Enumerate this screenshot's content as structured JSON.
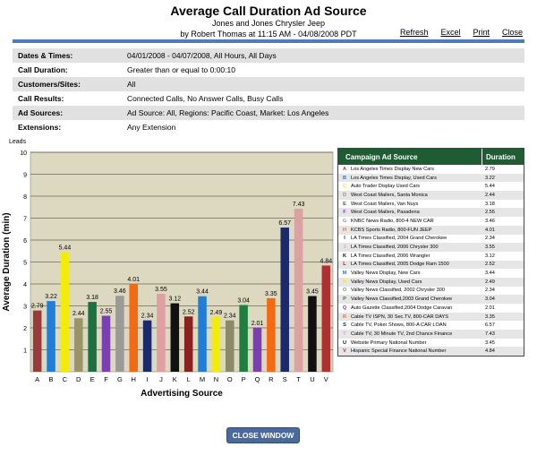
{
  "header": {
    "title": "Average Call Duration Ad Source",
    "subtitle": "Jones and Jones Chrysler Jeep",
    "byline": "by Robert Thomas at 11:15 AM - 04/08/2008  PDT",
    "links": [
      "Refresh",
      "Excel",
      "Print",
      "Close"
    ]
  },
  "criteria": [
    {
      "key": "Dates & Times:",
      "value": "04/01/2008 - 04/07/2008, All Hours, All Days"
    },
    {
      "key": "Call Duration:",
      "value": "Greater than or equal to 0:00:10"
    },
    {
      "key": "Customers/Sites:",
      "value": "All"
    },
    {
      "key": "Call Results:",
      "value": "Connected Calls, No Answer Calls, Busy Calls"
    },
    {
      "key": "Ad Sources:",
      "value": "Ad Source: All, Regions: Pacific Coast,  Market: Los Angeles"
    },
    {
      "key": "Extensions:",
      "value": "Any Extension"
    }
  ],
  "chart_data": {
    "type": "bar",
    "title": "",
    "corner_label": "Leads",
    "xlabel": "Advertising Source",
    "ylabel": "Average Duration (min)",
    "ylim": [
      0,
      10
    ],
    "yticks": [
      1,
      2,
      3,
      4,
      5,
      6,
      7,
      8,
      9,
      10
    ],
    "grid": true,
    "categories": [
      "A",
      "B",
      "C",
      "D",
      "E",
      "F",
      "G",
      "H",
      "I",
      "J",
      "K",
      "L",
      "M",
      "N",
      "O",
      "P",
      "Q",
      "R",
      "S",
      "T",
      "U",
      "V"
    ],
    "values": [
      2.79,
      3.22,
      5.44,
      2.44,
      3.18,
      2.55,
      3.46,
      4.01,
      2.34,
      3.55,
      3.12,
      2.52,
      3.44,
      2.49,
      2.34,
      3.04,
      2.01,
      3.35,
      6.57,
      7.43,
      3.45,
      4.84
    ],
    "colors": [
      "#9a3b3b",
      "#1f7ed8",
      "#f2ec0c",
      "#9a9466",
      "#1e7040",
      "#7a3fb0",
      "#9a9a9a",
      "#f46a12",
      "#1b2a6b",
      "#dfa0a4",
      "#111111",
      "#8a2020",
      "#1f7ed8",
      "#f2ec0c",
      "#8a8a66",
      "#1e8040",
      "#7a3fb0",
      "#f46a12",
      "#1b2a6b",
      "#dfa0a4",
      "#111111",
      "#b03030"
    ]
  },
  "legend": {
    "header_source": "Campaign Ad Source",
    "header_duration": "Duration",
    "rows": [
      {
        "letter": "A",
        "name": "Los Angeles  Times Display New Cars",
        "value": "2.79"
      },
      {
        "letter": "B",
        "name": "Los Angeles  Times Display, Used Cars",
        "value": "3.22"
      },
      {
        "letter": "C",
        "name": "Auto Trader Display Used Cars",
        "value": "5.44"
      },
      {
        "letter": "D",
        "name": "West Coast Mailers, Santa  Monica",
        "value": "2.44"
      },
      {
        "letter": "E",
        "name": "West Coast Mailers, Van  Nuys",
        "value": "3.18"
      },
      {
        "letter": "F",
        "name": "West Coast Mailers, Pasadena",
        "value": "2.55"
      },
      {
        "letter": "G",
        "name": "KNBC News Radio, 800-4 NEW CAR",
        "value": "3.46"
      },
      {
        "letter": "H",
        "name": "KCBS Sports  Radio, 800-FUN JEEP",
        "value": "4.01"
      },
      {
        "letter": "I",
        "name": "LA Times Classified, 2004  Grand Cherokee",
        "value": "2.34"
      },
      {
        "letter": "J",
        "name": "LA Times Classified, 2006  Chrysler 300",
        "value": "3.55"
      },
      {
        "letter": "K",
        "name": "LA Times Classified, 2006  Wrangler",
        "value": "3.12"
      },
      {
        "letter": "L",
        "name": "LA Times Classified, 2005 Dodge Ram  1500",
        "value": "2.52"
      },
      {
        "letter": "M",
        "name": "Valley News Display, New Cars",
        "value": "3.44"
      },
      {
        "letter": "N",
        "name": "Valley News Display, Used Cars",
        "value": "2.49"
      },
      {
        "letter": "O",
        "name": "Valley News Classified, 2002  Chrysler 300",
        "value": "2.34"
      },
      {
        "letter": "P",
        "name": "Valley News Classified,2003  Grand Cherokee",
        "value": "3.04"
      },
      {
        "letter": "Q",
        "name": "Auto Gazette  Classified,2004  Dodge Caravan",
        "value": "2.01"
      },
      {
        "letter": "R",
        "name": "Cable TV ISPN, 30 Sec.TV, 800-CAR DAYS",
        "value": "3.35"
      },
      {
        "letter": "S",
        "name": "Cable TV, Poker Shows, 800-A  CAR LOAN",
        "value": "6.57"
      },
      {
        "letter": "T",
        "name": "Cable TV, 30 Minute  TV, 2nd Chance Finance",
        "value": "7.43"
      },
      {
        "letter": "U",
        "name": "Website Primary National Number",
        "value": "3.45"
      },
      {
        "letter": "V",
        "name": "Hispanic Special Finance National Number",
        "value": "4.84"
      }
    ]
  },
  "footer": {
    "close_label": "CLOSE WINDOW"
  }
}
